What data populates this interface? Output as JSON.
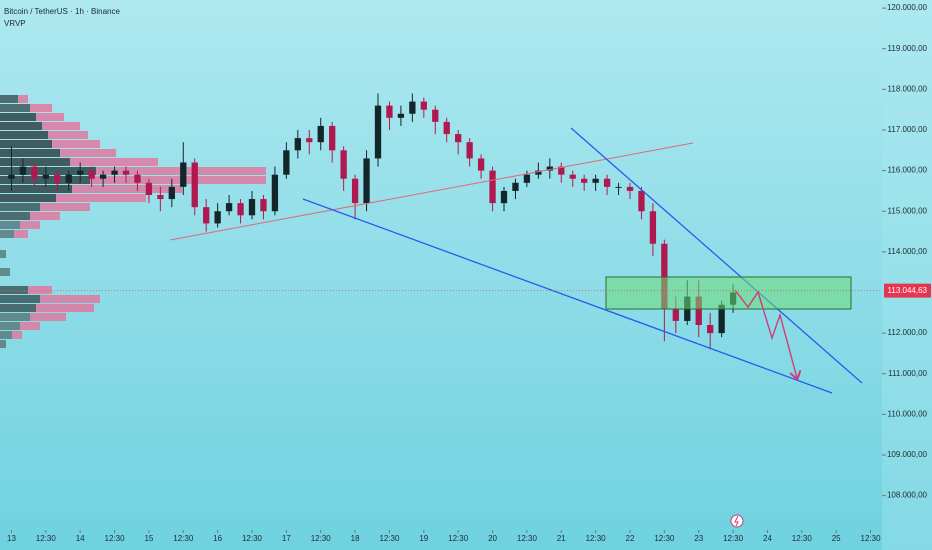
{
  "chart_data": {
    "type": "candlestick",
    "title": "Bitcoin / TetherUS · 1h · Binance",
    "indicator": "VRVP",
    "up_color": "#13262a",
    "down_color": "#b0194f",
    "xlim": [
      -1,
      76
    ],
    "ylim": [
      107400,
      120200
    ],
    "xticks": [
      {
        "value": 0,
        "label": "13"
      },
      {
        "value": 3,
        "label": "12:30"
      },
      {
        "value": 6,
        "label": "14"
      },
      {
        "value": 9,
        "label": "12:30"
      },
      {
        "value": 12,
        "label": "15"
      },
      {
        "value": 15,
        "label": "12:30"
      },
      {
        "value": 18,
        "label": "16"
      },
      {
        "value": 21,
        "label": "12:30"
      },
      {
        "value": 24,
        "label": "17"
      },
      {
        "value": 27,
        "label": "12:30"
      },
      {
        "value": 30,
        "label": "18"
      },
      {
        "value": 33,
        "label": "12:30"
      },
      {
        "value": 36,
        "label": "19"
      },
      {
        "value": 39,
        "label": "12:30"
      },
      {
        "value": 42,
        "label": "20"
      },
      {
        "value": 45,
        "label": "12:30"
      },
      {
        "value": 48,
        "label": "21"
      },
      {
        "value": 51,
        "label": "12:30"
      },
      {
        "value": 54,
        "label": "22"
      },
      {
        "value": 57,
        "label": "12:30"
      },
      {
        "value": 60,
        "label": "23"
      },
      {
        "value": 63,
        "label": "12:30"
      },
      {
        "value": 66,
        "label": "24"
      },
      {
        "value": 69,
        "label": "12:30"
      },
      {
        "value": 72,
        "label": "25"
      },
      {
        "value": 75,
        "label": "12:30"
      }
    ],
    "yticks": [
      {
        "value": 120000,
        "label": "120.000,00"
      },
      {
        "value": 119000,
        "label": "119.000,00"
      },
      {
        "value": 118000,
        "label": "118.000,00"
      },
      {
        "value": 117000,
        "label": "117.000,00"
      },
      {
        "value": 116000,
        "label": "116.000,00"
      },
      {
        "value": 115000,
        "label": "115.000,00"
      },
      {
        "value": 114000,
        "label": "114.000,00"
      },
      {
        "value": 112000,
        "label": "112.000,00"
      },
      {
        "value": 111000,
        "label": "111.000,00"
      },
      {
        "value": 110000,
        "label": "110.000,00"
      },
      {
        "value": 109000,
        "label": "109.000,00"
      },
      {
        "value": 108000,
        "label": "108.000,00"
      }
    ],
    "current_price": {
      "value": 113044.63,
      "label": "113.044,63"
    },
    "open": [
      115800,
      115900,
      116100,
      115800,
      115900,
      115700,
      115900,
      116000,
      115800,
      115900,
      116000,
      115900,
      115700,
      115400,
      115300,
      115600,
      116200,
      115100,
      114700,
      115000,
      115200,
      114900,
      115300,
      115000,
      115900,
      116500,
      116800,
      116700,
      117100,
      116500,
      115800,
      115200,
      116300,
      117600,
      117300,
      117400,
      117700,
      117500,
      117200,
      116900,
      116700,
      116300,
      116000,
      115200,
      115500,
      115700,
      115900,
      116000,
      116100,
      115900,
      115800,
      115700,
      115800,
      115600,
      115600,
      115500,
      115000,
      114200,
      112600,
      112300,
      112900,
      112200,
      112000,
      112700
    ],
    "high": [
      116600,
      116300,
      116200,
      116100,
      116000,
      116000,
      116200,
      116100,
      116000,
      116100,
      116100,
      116000,
      115800,
      115600,
      115800,
      116700,
      116300,
      115300,
      115200,
      115400,
      115300,
      115500,
      115400,
      116100,
      116700,
      117000,
      117000,
      117300,
      117200,
      116600,
      115900,
      116500,
      117900,
      117700,
      117600,
      117900,
      117800,
      117600,
      117300,
      117000,
      116800,
      116400,
      116100,
      115600,
      115800,
      116000,
      116200,
      116300,
      116200,
      116000,
      115900,
      115900,
      115900,
      115700,
      115700,
      115600,
      115200,
      114300,
      112900,
      113300,
      113300,
      112500,
      112800,
      113200
    ],
    "low": [
      115500,
      115700,
      115600,
      115600,
      115500,
      115500,
      115700,
      115600,
      115600,
      115700,
      115700,
      115500,
      115200,
      115000,
      115100,
      115400,
      114900,
      114500,
      114600,
      114900,
      114700,
      114800,
      114800,
      114900,
      115800,
      116300,
      116400,
      116500,
      116200,
      115500,
      114800,
      115000,
      116100,
      117000,
      117100,
      117200,
      117300,
      116900,
      116700,
      116400,
      116100,
      115800,
      115000,
      115000,
      115300,
      115600,
      115800,
      115800,
      115700,
      115600,
      115500,
      115500,
      115400,
      115400,
      115300,
      114800,
      113900,
      111800,
      112000,
      112200,
      111900,
      111600,
      111900,
      112500
    ],
    "close": [
      115900,
      116100,
      115800,
      115900,
      115700,
      115900,
      116000,
      115800,
      115900,
      116000,
      115900,
      115700,
      115400,
      115300,
      115600,
      116200,
      115100,
      114700,
      115000,
      115200,
      114900,
      115300,
      115000,
      115900,
      116500,
      116800,
      116700,
      117100,
      116500,
      115800,
      115200,
      116300,
      117600,
      117300,
      117400,
      117700,
      117500,
      117200,
      116900,
      116700,
      116300,
      116000,
      115200,
      115500,
      115700,
      115900,
      116000,
      116100,
      115900,
      115800,
      115700,
      115800,
      115600,
      115600,
      115500,
      115000,
      114200,
      112600,
      112300,
      112900,
      112200,
      112000,
      112700,
      113000
    ]
  }
}
